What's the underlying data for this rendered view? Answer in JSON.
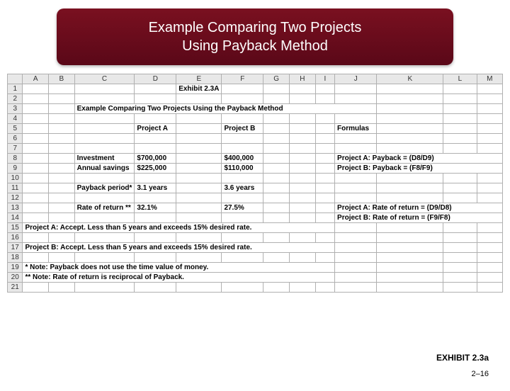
{
  "banner": {
    "line1": "Example Comparing Two Projects",
    "line2": "Using Payback Method"
  },
  "columns": [
    "",
    "A",
    "B",
    "C",
    "D",
    "E",
    "F",
    "G",
    "H",
    "I",
    "J",
    "K",
    "L",
    "M"
  ],
  "colWidths": [
    "22px",
    "40px",
    "40px",
    "74px",
    "60px",
    "50px",
    "60px",
    "40px",
    "40px",
    "30px",
    "60px",
    "100px",
    "50px",
    "38px"
  ],
  "rows": [
    {
      "n": "1",
      "cells": {
        "E": {
          "t": "Exhibit 2.3A",
          "b": true
        }
      }
    },
    {
      "n": "2"
    },
    {
      "n": "3",
      "cells": {
        "C": {
          "t": "Example Comparing Two Projects Using the Payback Method",
          "b": true,
          "span": 8
        }
      }
    },
    {
      "n": "4"
    },
    {
      "n": "5",
      "cells": {
        "D": {
          "t": "Project A",
          "b": true
        },
        "F": {
          "t": "Project B",
          "b": true
        },
        "J": {
          "t": "Formulas",
          "b": true
        }
      }
    },
    {
      "n": "6"
    },
    {
      "n": "7"
    },
    {
      "n": "8",
      "cells": {
        "C": {
          "t": "Investment",
          "b": true
        },
        "D": {
          "t": "$700,000",
          "b": true
        },
        "F": {
          "t": "$400,000",
          "b": true
        },
        "J": {
          "t": "Project A:  Payback = (D8/D9)",
          "b": true,
          "span": 4
        }
      }
    },
    {
      "n": "9",
      "cells": {
        "C": {
          "t": "Annual savings",
          "b": true
        },
        "D": {
          "t": "$225,000",
          "b": true
        },
        "F": {
          "t": "$110,000",
          "b": true
        },
        "J": {
          "t": "Project B:  Payback = (F8/F9)",
          "b": true,
          "span": 4
        }
      }
    },
    {
      "n": "10"
    },
    {
      "n": "11",
      "cells": {
        "C": {
          "t": "Payback period*",
          "b": true
        },
        "D": {
          "t": "3.1 years",
          "b": true
        },
        "F": {
          "t": "3.6 years",
          "b": true
        }
      }
    },
    {
      "n": "12"
    },
    {
      "n": "13",
      "cells": {
        "C": {
          "t": "Rate of return **",
          "b": true
        },
        "D": {
          "t": "32.1%",
          "b": true
        },
        "F": {
          "t": "27.5%",
          "b": true
        },
        "J": {
          "t": "Project A:   Rate of return  = (D9/D8)",
          "b": true,
          "span": 4
        }
      }
    },
    {
      "n": "14",
      "cells": {
        "J": {
          "t": "Project B:   Rate of return  = (F9/F8)",
          "b": true,
          "span": 4
        }
      }
    },
    {
      "n": "15",
      "cells": {
        "A": {
          "t": "Project A: Accept.  Less than 5 years and exceeds 15% desired rate.",
          "b": true,
          "span": 9
        }
      }
    },
    {
      "n": "16"
    },
    {
      "n": "17",
      "cells": {
        "A": {
          "t": "Project B: Accept.  Less than 5 years and exceeds 15% desired rate.",
          "b": true,
          "span": 9
        }
      }
    },
    {
      "n": "18"
    },
    {
      "n": "19",
      "cells": {
        "A": {
          "t": "*   Note:  Payback does not use the time value of money.",
          "b": true,
          "span": 9
        }
      }
    },
    {
      "n": "20",
      "cells": {
        "A": {
          "t": "** Note:  Rate of return is reciprocal of Payback.",
          "b": true,
          "span": 9
        }
      }
    },
    {
      "n": "21"
    }
  ],
  "footer": {
    "exhibit": "EXHIBIT 2.3a",
    "pagenum": "2–16"
  },
  "colors": {
    "bannerTop": "#7a1020",
    "bannerBottom": "#5a0818",
    "gridBorder": "#b0b0b0",
    "headerBg": "#e8e8e8"
  }
}
